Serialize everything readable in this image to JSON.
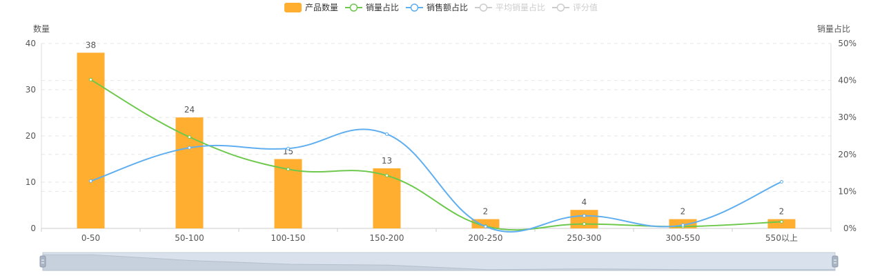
{
  "chart_data": {
    "type": "bar",
    "categories": [
      "0-50",
      "50-100",
      "100-150",
      "150-200",
      "200-250",
      "250-300",
      "300-550",
      "550以上"
    ],
    "y_left": {
      "label": "数量",
      "min": 0,
      "max": 40,
      "ticks": [
        "0",
        "10",
        "20",
        "30",
        "40"
      ]
    },
    "y_right": {
      "label": "销量占比",
      "min": 0,
      "max": 50,
      "ticks": [
        "0%",
        "10%",
        "20%",
        "30%",
        "40%",
        "50%"
      ]
    },
    "series": [
      {
        "name": "产品数量",
        "type": "bar",
        "axis": "left",
        "color": "#FFAE30",
        "values": [
          38,
          24,
          15,
          13,
          2,
          4,
          2,
          2
        ],
        "labels": [
          "38",
          "24",
          "15",
          "13",
          "2",
          "4",
          "2",
          "2"
        ]
      },
      {
        "name": "销量占比",
        "type": "line",
        "axis": "right",
        "color": "#6DC84C",
        "values": [
          40.2,
          24.7,
          16.0,
          14.3,
          0.6,
          1.2,
          0.5,
          1.8
        ]
      },
      {
        "name": "销售额占比",
        "type": "line",
        "axis": "right",
        "color": "#5EAEF0",
        "values": [
          12.8,
          21.8,
          21.6,
          25.5,
          0.5,
          3.4,
          0.9,
          12.6
        ]
      }
    ],
    "legend": [
      {
        "name": "产品数量",
        "kind": "bar",
        "color": "#FFAE30",
        "active": true
      },
      {
        "name": "销量占比",
        "kind": "line",
        "color": "#6DC84C",
        "active": true
      },
      {
        "name": "销售额占比",
        "kind": "line",
        "color": "#5EAEF0",
        "active": true
      },
      {
        "name": "平均销量占比",
        "kind": "line",
        "color": "#CCCCCC",
        "active": false
      },
      {
        "name": "评分值",
        "kind": "line",
        "color": "#CCCCCC",
        "active": false
      }
    ],
    "legend_position": "top-center",
    "grid": true,
    "datazoom": {
      "start": 0,
      "end": 100
    }
  }
}
